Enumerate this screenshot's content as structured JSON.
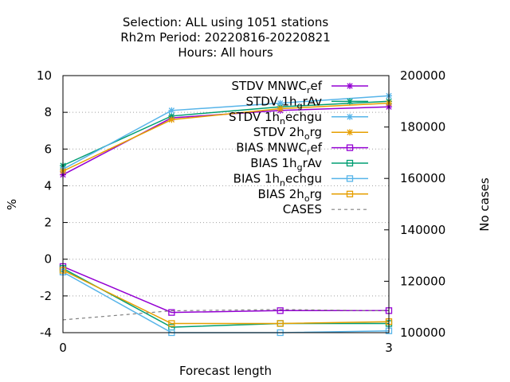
{
  "chart_data": {
    "type": "line",
    "title": [
      "Selection: ALL using  1051 stations",
      "Rh2m    Period: 20220816-20220821",
      "Hours:  All hours"
    ],
    "xlabel": "Forecast length",
    "ylabel": "%",
    "y2label": "No cases",
    "xlim": [
      0,
      3
    ],
    "ylim": [
      -4,
      10
    ],
    "y2lim": [
      100000,
      200000
    ],
    "x_ticks": [
      "0",
      "3"
    ],
    "y_ticks": [
      "-4",
      "-2",
      "0",
      "2",
      "4",
      "6",
      "8",
      "10"
    ],
    "y2_ticks": [
      "100000",
      "120000",
      "140000",
      "160000",
      "180000",
      "200000"
    ],
    "grid": "y",
    "legend_position": "top-right",
    "x": [
      0,
      1,
      2,
      3
    ],
    "series": [
      {
        "label": "STDV MNWC",
        "sub": "r",
        "suffix": "ef",
        "color": "#9400d3",
        "marker": "star",
        "dash": false,
        "axis": "y1",
        "values": [
          4.6,
          7.7,
          8.1,
          8.3
        ]
      },
      {
        "label": "STDV 1h",
        "sub": "g",
        "suffix": "rAv",
        "color": "#009e73",
        "marker": "star",
        "dash": false,
        "axis": "y1",
        "values": [
          5.1,
          7.8,
          8.3,
          8.6
        ]
      },
      {
        "label": "STDV 1h",
        "sub": "n",
        "suffix": "echgu",
        "color": "#56b4e9",
        "marker": "star",
        "dash": false,
        "axis": "y1",
        "values": [
          4.9,
          8.1,
          8.5,
          8.9
        ]
      },
      {
        "label": "STDV 2h",
        "sub": "o",
        "suffix": "rg",
        "color": "#e69f00",
        "marker": "star",
        "dash": false,
        "axis": "y1",
        "values": [
          4.8,
          7.6,
          8.2,
          8.5
        ]
      },
      {
        "label": "BIAS MNWC",
        "sub": "r",
        "suffix": "ef",
        "color": "#9400d3",
        "marker": "square",
        "dash": false,
        "axis": "y1",
        "values": [
          -0.4,
          -2.9,
          -2.8,
          -2.8
        ]
      },
      {
        "label": "BIAS 1h",
        "sub": "g",
        "suffix": "rAv",
        "color": "#009e73",
        "marker": "square",
        "dash": false,
        "axis": "y1",
        "values": [
          -0.5,
          -3.7,
          -3.5,
          -3.5
        ]
      },
      {
        "label": "BIAS 1h",
        "sub": "n",
        "suffix": "echgu",
        "color": "#56b4e9",
        "marker": "square",
        "dash": false,
        "axis": "y1",
        "values": [
          -0.7,
          -4.0,
          -4.0,
          -3.9
        ]
      },
      {
        "label": "BIAS 2h",
        "sub": "o",
        "suffix": "rg",
        "color": "#e69f00",
        "marker": "square",
        "dash": false,
        "axis": "y1",
        "values": [
          -0.6,
          -3.5,
          -3.5,
          -3.4
        ]
      },
      {
        "label": "CASES",
        "sub": "",
        "suffix": "",
        "color": "#808080",
        "marker": "none",
        "dash": true,
        "axis": "y2",
        "values": [
          105000,
          108500,
          109000,
          108500
        ]
      }
    ]
  }
}
